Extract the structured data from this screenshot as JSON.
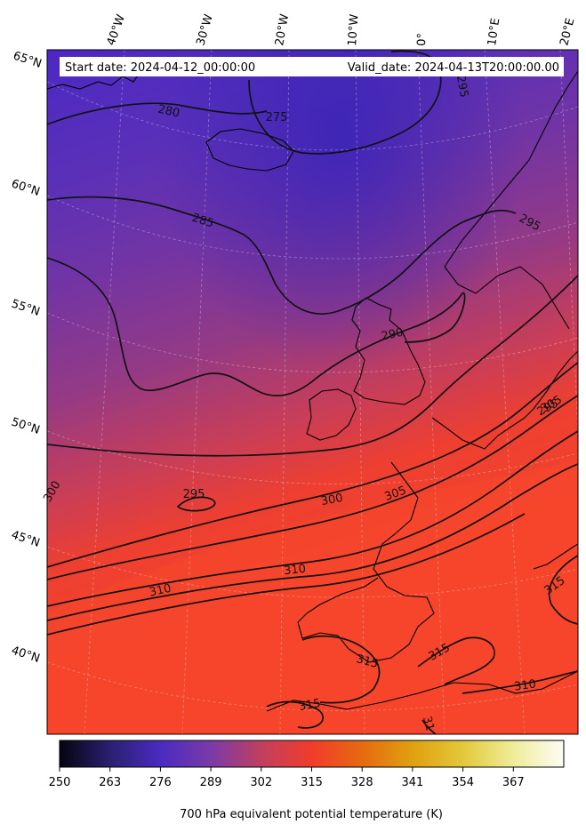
{
  "header": {
    "start_date": "Start date: 2024-04-12_00:00:00",
    "valid_date": "Valid_date: 2024-04-13T20:00:00.00"
  },
  "map": {
    "lon_ticks": [
      "40°W",
      "30°W",
      "20°W",
      "10°W",
      "0°",
      "10°E",
      "20°E"
    ],
    "lat_ticks": [
      "65°N",
      "60°N",
      "55°N",
      "50°N",
      "45°N",
      "40°N"
    ],
    "contours": [
      {
        "label": "275"
      },
      {
        "label": "280"
      },
      {
        "label": "285"
      },
      {
        "label": "290"
      },
      {
        "label": "295"
      },
      {
        "label": "295"
      },
      {
        "label": "295"
      },
      {
        "label": "295"
      },
      {
        "label": "300"
      },
      {
        "label": "300"
      },
      {
        "label": "305"
      },
      {
        "label": "305"
      },
      {
        "label": "310"
      },
      {
        "label": "310"
      },
      {
        "label": "310"
      },
      {
        "label": "315"
      },
      {
        "label": "315"
      },
      {
        "label": "315"
      },
      {
        "label": "315"
      },
      {
        "label": "31"
      }
    ]
  },
  "colorbar": {
    "ticks": [
      "250",
      "263",
      "276",
      "289",
      "302",
      "315",
      "328",
      "341",
      "354",
      "367"
    ],
    "label": "700 hPa equivalent potential temperature (K)",
    "colors": [
      "#050410",
      "#2a2070",
      "#4a2bc0",
      "#7a3aa8",
      "#c0405e",
      "#f23c2c",
      "#e66a10",
      "#e0a010",
      "#e2c83a",
      "#f0ec9a",
      "#fdfdf4"
    ]
  }
}
